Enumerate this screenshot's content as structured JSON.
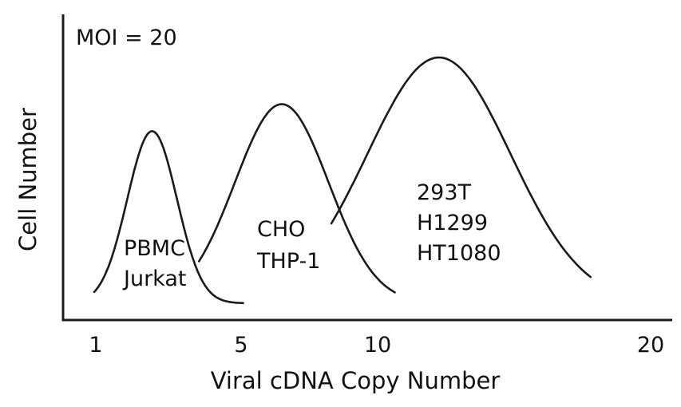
{
  "chart_data": {
    "type": "area",
    "title": "",
    "annotation": "MOI = 20",
    "xlabel": "Viral cDNA Copy Number",
    "ylabel": "Cell Number",
    "xticks": [
      "1",
      "5",
      "10",
      "20"
    ],
    "xlim": [
      0,
      22
    ],
    "ylim": [
      0,
      1
    ],
    "grid": false,
    "series": [
      {
        "labels": [
          "PBMC",
          "Jurkat"
        ],
        "mean": 3.2,
        "sd": 0.9,
        "peak": 0.7,
        "range": [
          1.1,
          6.5
        ]
      },
      {
        "labels": [
          "CHO",
          "THP-1"
        ],
        "mean": 7.9,
        "sd": 1.7,
        "peak": 0.81,
        "range": [
          4.9,
          12.0
        ]
      },
      {
        "labels": [
          "293T",
          "H1299",
          "HT1080"
        ],
        "mean": 13.6,
        "sd": 2.6,
        "peak": 1.0,
        "range": [
          9.7,
          19.1
        ]
      }
    ]
  }
}
